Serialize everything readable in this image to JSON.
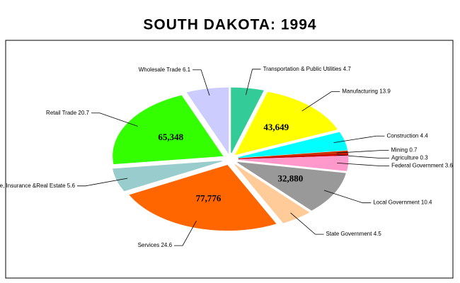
{
  "chart_data": {
    "type": "pie",
    "title": "SOUTH DAKOTA:  1994",
    "categories": [
      "Transportation & Public Utilities",
      "Manufacturing",
      "Construction",
      "Mining",
      "Agriculture",
      "Federal Government",
      "Local Government",
      "State Government",
      "Services",
      "Finance, Insurance &Real Estate",
      "Retail Trade",
      "Wholesale Trade"
    ],
    "values": [
      4.7,
      13.9,
      4.4,
      0.7,
      0.3,
      3.6,
      10.4,
      4.5,
      24.6,
      5.6,
      20.7,
      6.1
    ],
    "colors": [
      "#33cc99",
      "#ffff00",
      "#00ffff",
      "#cc3300",
      "#cc0000",
      "#ff99cc",
      "#999999",
      "#ffcc99",
      "#ff6600",
      "#99cccc",
      "#33ff00",
      "#ccccff"
    ],
    "slice_labels": [
      null,
      "43,649",
      null,
      null,
      null,
      null,
      "32,880",
      null,
      "77,776",
      null,
      "65,348",
      null
    ]
  }
}
